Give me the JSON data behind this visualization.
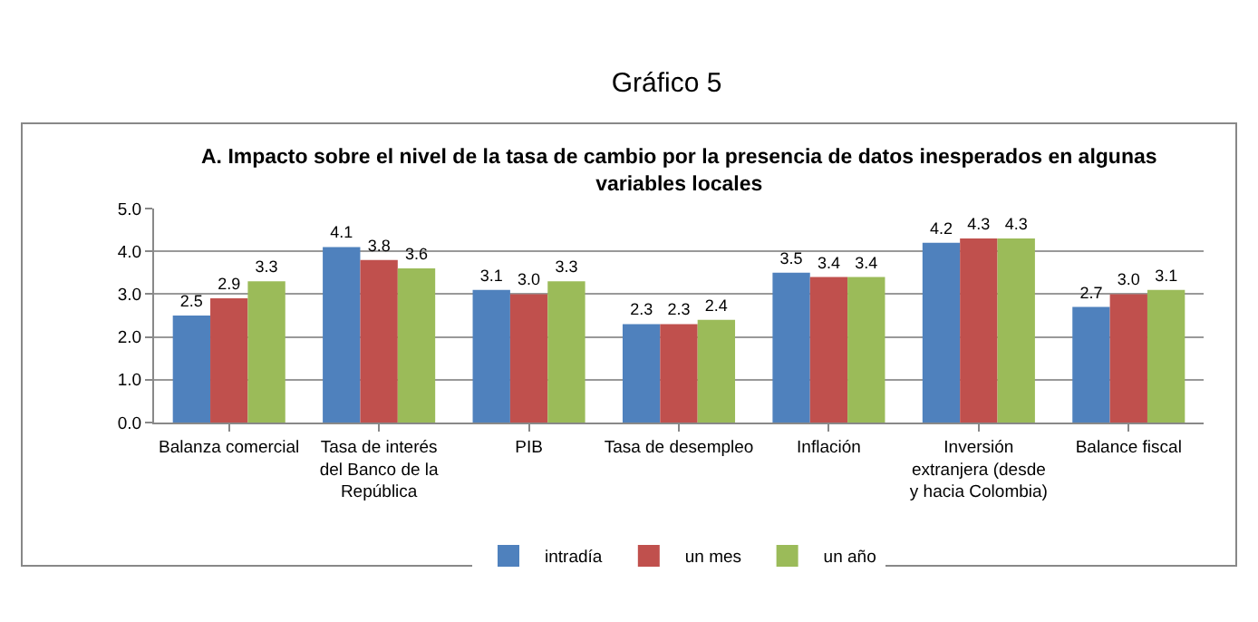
{
  "chart_data": {
    "type": "bar",
    "title": "Gráfico 5",
    "subtitle": "A. Impacto sobre el nivel de la tasa de cambio por la presencia de datos inesperados en algunas variables locales",
    "categories": [
      "Balanza comercial",
      "Tasa de interés del Banco de la República",
      "PIB",
      "Tasa de desempleo",
      "Inflación",
      "Inversión extranjera (desde y hacia Colombia)",
      "Balance fiscal"
    ],
    "series": [
      {
        "name": "intradía",
        "color": "#4f81bd",
        "values": [
          2.5,
          4.1,
          3.1,
          2.3,
          3.5,
          4.2,
          2.7
        ],
        "value_labels": [
          "2.5",
          "4.1",
          "3.1",
          "2.3",
          "3.5",
          "4.2",
          "2.7"
        ]
      },
      {
        "name": "un mes",
        "color": "#c0504d",
        "values": [
          2.9,
          3.8,
          3.0,
          2.3,
          3.4,
          4.3,
          3.0
        ],
        "value_labels": [
          "2.9",
          "3.8",
          "3.0",
          "2.3",
          "3.4",
          "4.3",
          "3.0"
        ]
      },
      {
        "name": "un año",
        "color": "#9bbb59",
        "values": [
          3.3,
          3.6,
          3.3,
          2.4,
          3.4,
          4.3,
          3.1
        ],
        "value_labels": [
          "3.3",
          "3.6",
          "3.3",
          "2.4",
          "3.4",
          "4.3",
          "3.1"
        ]
      }
    ],
    "ylim": [
      0,
      5
    ],
    "yticks": [
      {
        "value": 0,
        "label": "0.0"
      },
      {
        "value": 1,
        "label": "1.0"
      },
      {
        "value": 2,
        "label": "2.0"
      },
      {
        "value": 3,
        "label": "3.0"
      },
      {
        "value": 4,
        "label": "4.0"
      },
      {
        "value": 5,
        "label": "5.0"
      }
    ],
    "grid": "y",
    "legend": "bottom"
  }
}
